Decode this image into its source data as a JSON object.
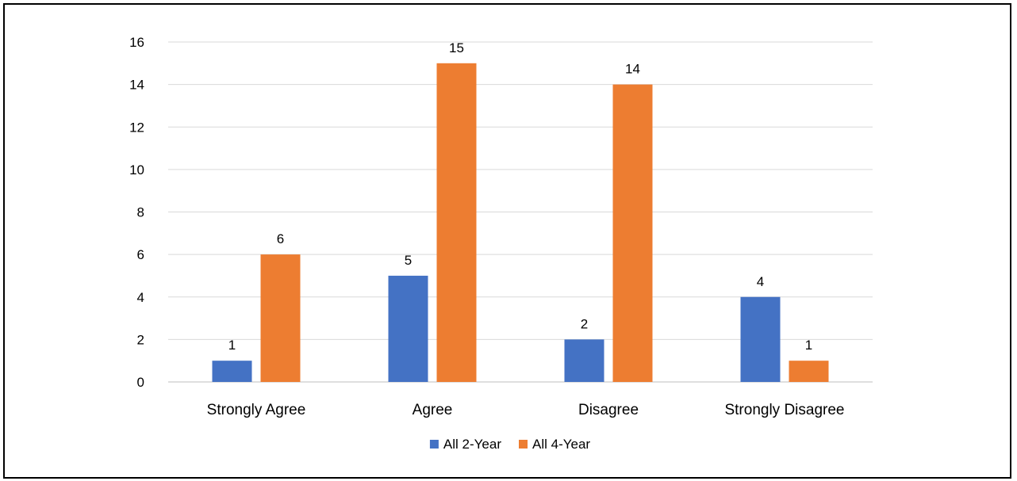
{
  "chart_data": {
    "type": "bar",
    "categories": [
      "Strongly Agree",
      "Agree",
      "Disagree",
      "Strongly Disagree"
    ],
    "series": [
      {
        "name": "All 2-Year",
        "values": [
          1,
          5,
          2,
          4
        ],
        "color": "#4472C4"
      },
      {
        "name": "All 4-Year",
        "values": [
          6,
          15,
          14,
          1
        ],
        "color": "#ED7D31"
      }
    ],
    "ylim": [
      0,
      16
    ],
    "yticks": [
      0,
      2,
      4,
      6,
      8,
      10,
      12,
      14,
      16
    ],
    "grid": true,
    "legend_position": "bottom",
    "data_labels": true
  }
}
